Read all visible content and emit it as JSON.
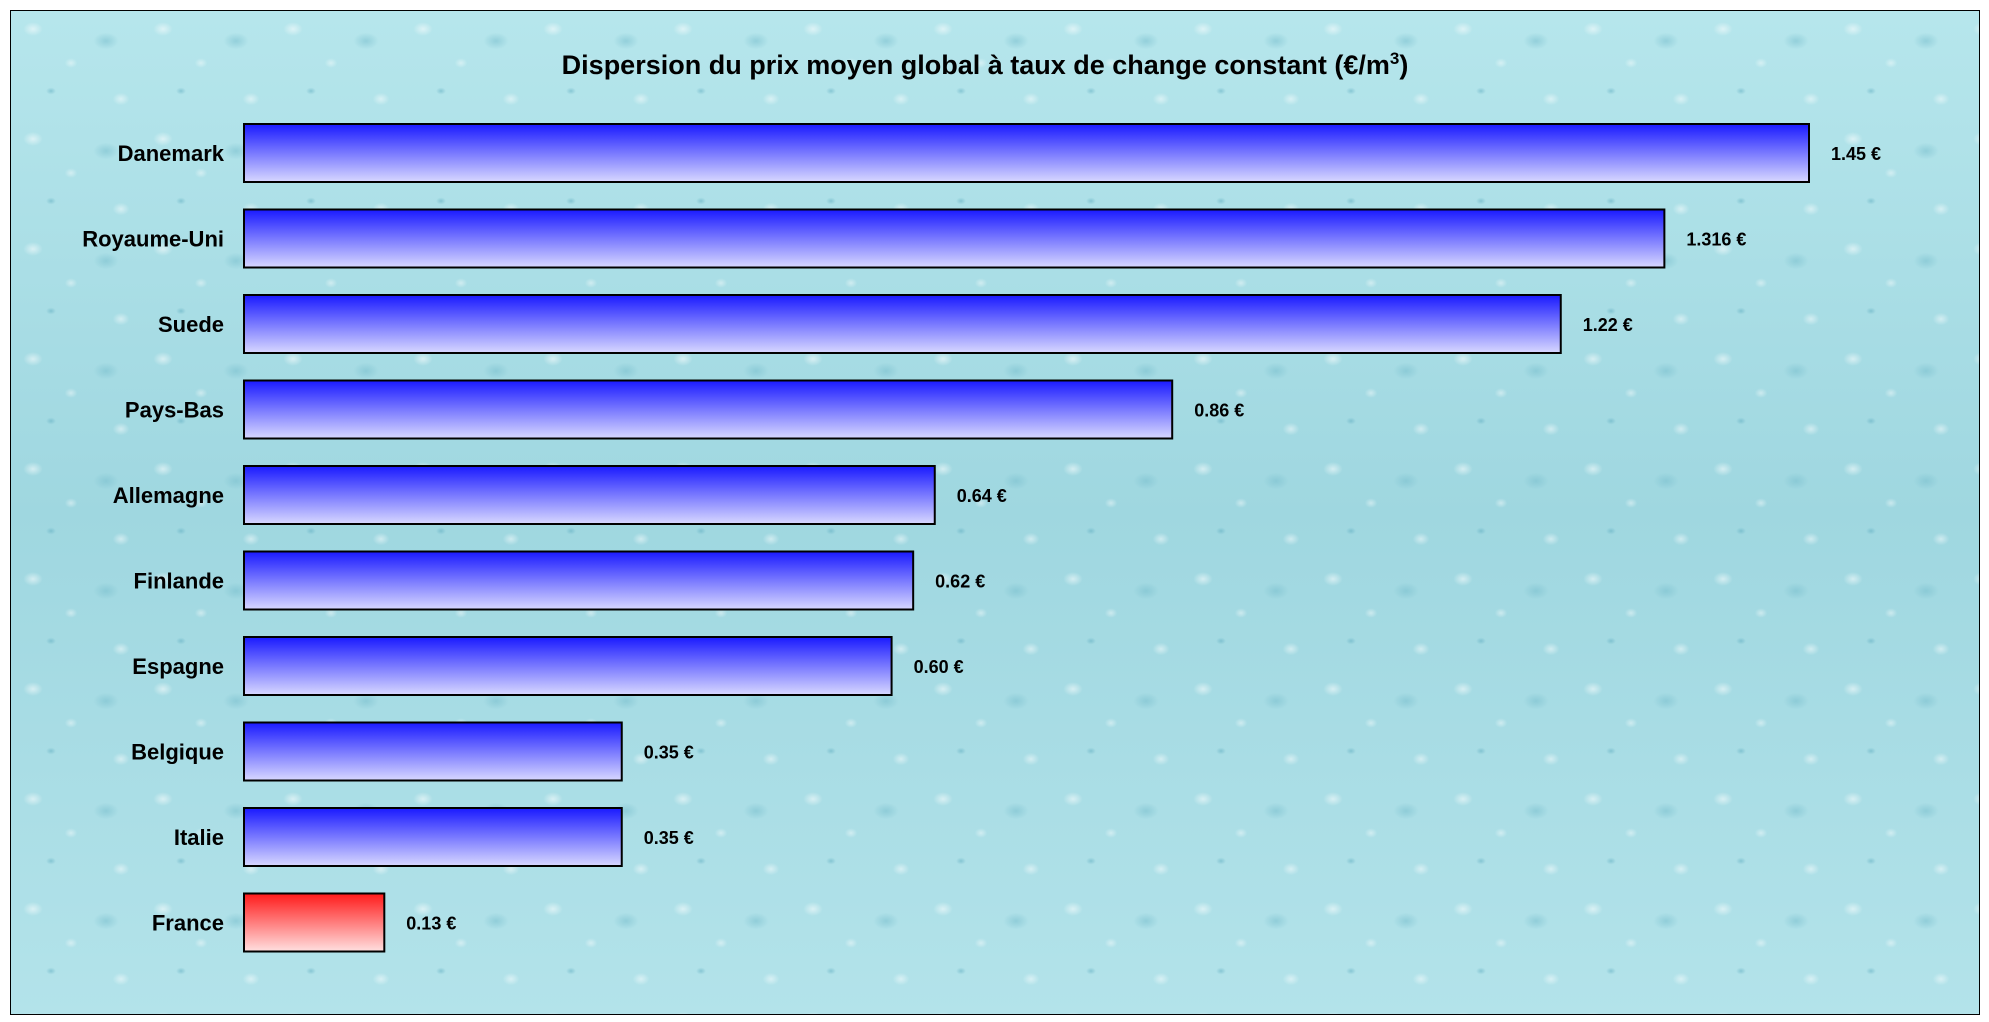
{
  "chart_data": {
    "type": "bar",
    "orientation": "horizontal",
    "title": "Dispersion du prix moyen global à taux de change constant (€/m",
    "title_superscript": "3",
    "title_suffix": ")",
    "categories": [
      "Danemark",
      "Royaume-Uni",
      "Suede",
      "Pays-Bas",
      "Allemagne",
      "Finlande",
      "Espagne",
      "Belgique",
      "Italie",
      "France"
    ],
    "values": [
      1.45,
      1.316,
      1.22,
      0.86,
      0.64,
      0.62,
      0.6,
      0.35,
      0.35,
      0.13
    ],
    "value_labels": [
      "1.45 €",
      "1.316 €",
      "1.22 €",
      "0.86 €",
      "0.64 €",
      "0.62 €",
      "0.60 €",
      "0.35 €",
      "0.35 €",
      "0.13 €"
    ],
    "highlight_category": "France",
    "xlim": [
      0,
      1.45
    ],
    "grid": false,
    "legend": "none",
    "colors": {
      "default_top": "#1a1aff",
      "default_bottom": "#d8d8ff",
      "highlight_top": "#ff1a1a",
      "highlight_bottom": "#ffe0e0",
      "bar_border": "#000000"
    }
  }
}
